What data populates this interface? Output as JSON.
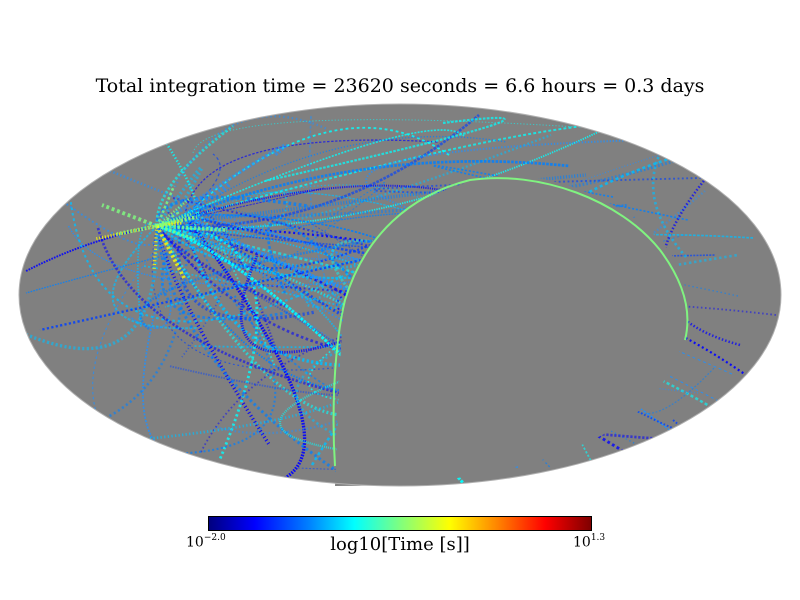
{
  "chart_data": {
    "type": "heatmap",
    "projection": "mollweide",
    "title": "Total integration time = 23620 seconds = 6.6 hours = 0.3 days",
    "colorbar": {
      "label": "log10[Time [s]]",
      "min_base": "10",
      "min_exp": "−2.0",
      "max_base": "10",
      "max_exp": "1.3",
      "vmin_log10": -2.0,
      "vmax_log10": 1.3,
      "colormap": "jet"
    },
    "unobserved_color": "#808080",
    "background_color": "#ffffff",
    "total_seconds": 23620,
    "total_hours": 6.6,
    "total_days": 0.3
  }
}
